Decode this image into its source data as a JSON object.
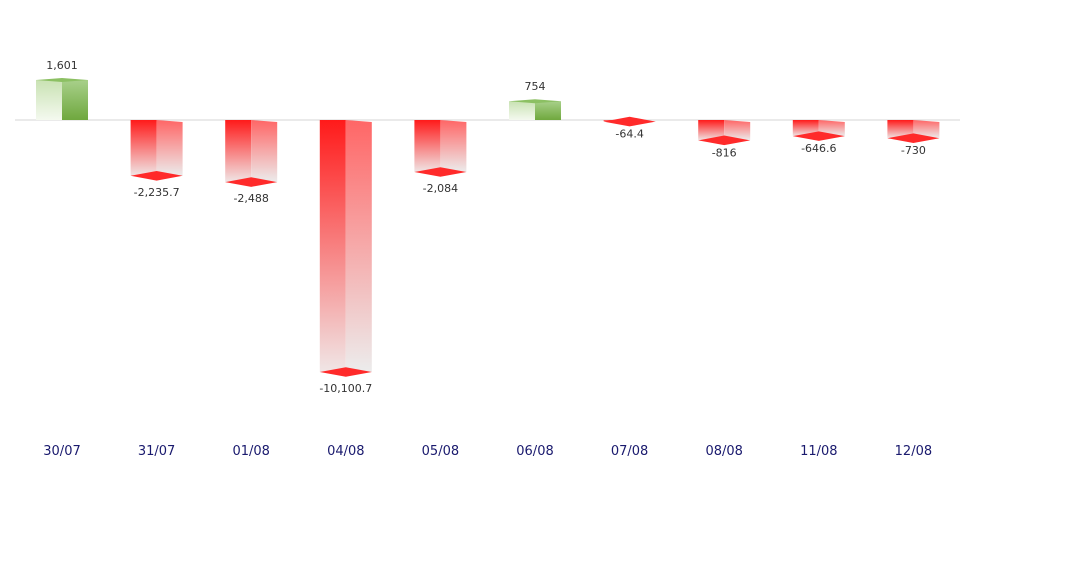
{
  "chart_data": {
    "type": "bar",
    "categories": [
      "30/07",
      "31/07",
      "01/08",
      "04/08",
      "05/08",
      "06/08",
      "07/08",
      "08/08",
      "11/08",
      "12/08"
    ],
    "values": [
      1601,
      -2235.7,
      -2488,
      -10100.7,
      -2084,
      754,
      -64.4,
      -816,
      -646.6,
      -730
    ],
    "value_labels": [
      "1,601",
      "-2,235.7",
      "-2,488",
      "-10,100.7",
      "-2,084",
      "754",
      "-64.4",
      "-816",
      "-646.6",
      "-730"
    ],
    "title": "",
    "xlabel": "",
    "ylabel": "",
    "ylim": [
      -10100.7,
      1601
    ],
    "grid": false,
    "legend": "none",
    "colors": {
      "positive": "#7cb342",
      "positive_light": "#e8f3dc",
      "negative": "#ff1a1a",
      "negative_light": "#eeeeee",
      "baseline": "#d6d6d6"
    }
  }
}
